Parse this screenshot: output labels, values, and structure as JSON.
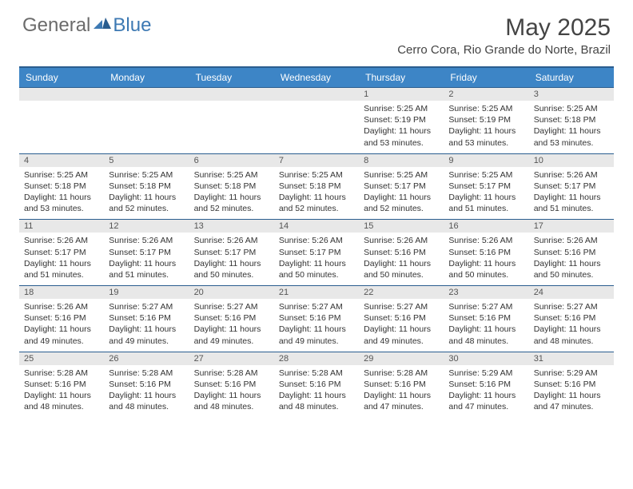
{
  "logo": {
    "general": "General",
    "blue": "Blue"
  },
  "title": "May 2025",
  "subtitle": "Cerro Cora, Rio Grande do Norte, Brazil",
  "colors": {
    "header_bg": "#3d85c6",
    "border": "#2a5d8f",
    "daynum_bg": "#e8e8e8",
    "logo_blue": "#3d79b3",
    "logo_gray": "#6b6b6b"
  },
  "day_headers": [
    "Sunday",
    "Monday",
    "Tuesday",
    "Wednesday",
    "Thursday",
    "Friday",
    "Saturday"
  ],
  "weeks": [
    [
      {
        "num": "",
        "lines": []
      },
      {
        "num": "",
        "lines": []
      },
      {
        "num": "",
        "lines": []
      },
      {
        "num": "",
        "lines": []
      },
      {
        "num": "1",
        "lines": [
          "Sunrise: 5:25 AM",
          "Sunset: 5:19 PM",
          "Daylight: 11 hours and 53 minutes."
        ]
      },
      {
        "num": "2",
        "lines": [
          "Sunrise: 5:25 AM",
          "Sunset: 5:19 PM",
          "Daylight: 11 hours and 53 minutes."
        ]
      },
      {
        "num": "3",
        "lines": [
          "Sunrise: 5:25 AM",
          "Sunset: 5:18 PM",
          "Daylight: 11 hours and 53 minutes."
        ]
      }
    ],
    [
      {
        "num": "4",
        "lines": [
          "Sunrise: 5:25 AM",
          "Sunset: 5:18 PM",
          "Daylight: 11 hours and 53 minutes."
        ]
      },
      {
        "num": "5",
        "lines": [
          "Sunrise: 5:25 AM",
          "Sunset: 5:18 PM",
          "Daylight: 11 hours and 52 minutes."
        ]
      },
      {
        "num": "6",
        "lines": [
          "Sunrise: 5:25 AM",
          "Sunset: 5:18 PM",
          "Daylight: 11 hours and 52 minutes."
        ]
      },
      {
        "num": "7",
        "lines": [
          "Sunrise: 5:25 AM",
          "Sunset: 5:18 PM",
          "Daylight: 11 hours and 52 minutes."
        ]
      },
      {
        "num": "8",
        "lines": [
          "Sunrise: 5:25 AM",
          "Sunset: 5:17 PM",
          "Daylight: 11 hours and 52 minutes."
        ]
      },
      {
        "num": "9",
        "lines": [
          "Sunrise: 5:25 AM",
          "Sunset: 5:17 PM",
          "Daylight: 11 hours and 51 minutes."
        ]
      },
      {
        "num": "10",
        "lines": [
          "Sunrise: 5:26 AM",
          "Sunset: 5:17 PM",
          "Daylight: 11 hours and 51 minutes."
        ]
      }
    ],
    [
      {
        "num": "11",
        "lines": [
          "Sunrise: 5:26 AM",
          "Sunset: 5:17 PM",
          "Daylight: 11 hours and 51 minutes."
        ]
      },
      {
        "num": "12",
        "lines": [
          "Sunrise: 5:26 AM",
          "Sunset: 5:17 PM",
          "Daylight: 11 hours and 51 minutes."
        ]
      },
      {
        "num": "13",
        "lines": [
          "Sunrise: 5:26 AM",
          "Sunset: 5:17 PM",
          "Daylight: 11 hours and 50 minutes."
        ]
      },
      {
        "num": "14",
        "lines": [
          "Sunrise: 5:26 AM",
          "Sunset: 5:17 PM",
          "Daylight: 11 hours and 50 minutes."
        ]
      },
      {
        "num": "15",
        "lines": [
          "Sunrise: 5:26 AM",
          "Sunset: 5:16 PM",
          "Daylight: 11 hours and 50 minutes."
        ]
      },
      {
        "num": "16",
        "lines": [
          "Sunrise: 5:26 AM",
          "Sunset: 5:16 PM",
          "Daylight: 11 hours and 50 minutes."
        ]
      },
      {
        "num": "17",
        "lines": [
          "Sunrise: 5:26 AM",
          "Sunset: 5:16 PM",
          "Daylight: 11 hours and 50 minutes."
        ]
      }
    ],
    [
      {
        "num": "18",
        "lines": [
          "Sunrise: 5:26 AM",
          "Sunset: 5:16 PM",
          "Daylight: 11 hours and 49 minutes."
        ]
      },
      {
        "num": "19",
        "lines": [
          "Sunrise: 5:27 AM",
          "Sunset: 5:16 PM",
          "Daylight: 11 hours and 49 minutes."
        ]
      },
      {
        "num": "20",
        "lines": [
          "Sunrise: 5:27 AM",
          "Sunset: 5:16 PM",
          "Daylight: 11 hours and 49 minutes."
        ]
      },
      {
        "num": "21",
        "lines": [
          "Sunrise: 5:27 AM",
          "Sunset: 5:16 PM",
          "Daylight: 11 hours and 49 minutes."
        ]
      },
      {
        "num": "22",
        "lines": [
          "Sunrise: 5:27 AM",
          "Sunset: 5:16 PM",
          "Daylight: 11 hours and 49 minutes."
        ]
      },
      {
        "num": "23",
        "lines": [
          "Sunrise: 5:27 AM",
          "Sunset: 5:16 PM",
          "Daylight: 11 hours and 48 minutes."
        ]
      },
      {
        "num": "24",
        "lines": [
          "Sunrise: 5:27 AM",
          "Sunset: 5:16 PM",
          "Daylight: 11 hours and 48 minutes."
        ]
      }
    ],
    [
      {
        "num": "25",
        "lines": [
          "Sunrise: 5:28 AM",
          "Sunset: 5:16 PM",
          "Daylight: 11 hours and 48 minutes."
        ]
      },
      {
        "num": "26",
        "lines": [
          "Sunrise: 5:28 AM",
          "Sunset: 5:16 PM",
          "Daylight: 11 hours and 48 minutes."
        ]
      },
      {
        "num": "27",
        "lines": [
          "Sunrise: 5:28 AM",
          "Sunset: 5:16 PM",
          "Daylight: 11 hours and 48 minutes."
        ]
      },
      {
        "num": "28",
        "lines": [
          "Sunrise: 5:28 AM",
          "Sunset: 5:16 PM",
          "Daylight: 11 hours and 48 minutes."
        ]
      },
      {
        "num": "29",
        "lines": [
          "Sunrise: 5:28 AM",
          "Sunset: 5:16 PM",
          "Daylight: 11 hours and 47 minutes."
        ]
      },
      {
        "num": "30",
        "lines": [
          "Sunrise: 5:29 AM",
          "Sunset: 5:16 PM",
          "Daylight: 11 hours and 47 minutes."
        ]
      },
      {
        "num": "31",
        "lines": [
          "Sunrise: 5:29 AM",
          "Sunset: 5:16 PM",
          "Daylight: 11 hours and 47 minutes."
        ]
      }
    ]
  ]
}
